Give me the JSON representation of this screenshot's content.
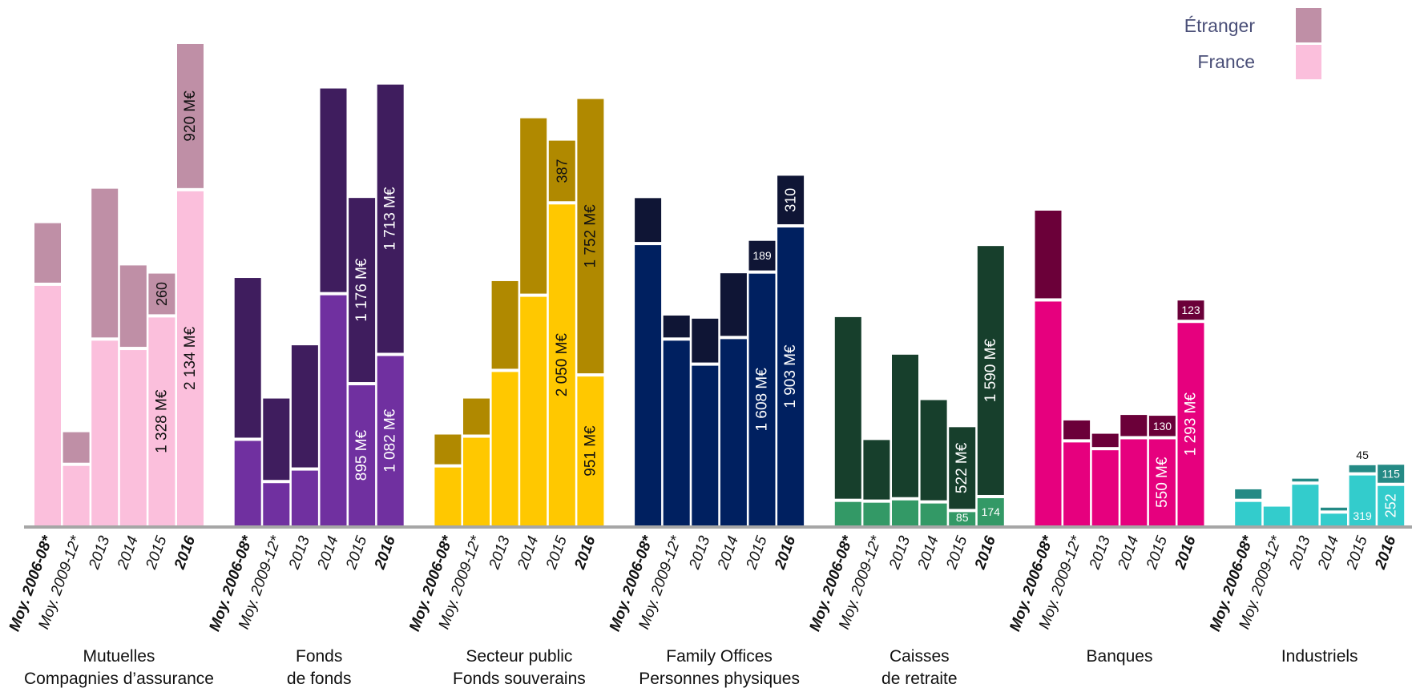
{
  "legend": [
    {
      "name": "Étranger",
      "key": "etranger"
    },
    {
      "name": "France",
      "key": "france"
    }
  ],
  "chart_data": {
    "type": "bar",
    "stacked": true,
    "ylim": [
      0,
      3100
    ],
    "grid": false,
    "legend_position": "top-right",
    "categories": [
      "Moy. 2006-08*",
      "Moy. 2009-12*",
      "2013",
      "2014",
      "2015",
      "2016"
    ],
    "bold_categories": [
      "Moy. 2006-08*",
      "2016"
    ],
    "series_names": [
      "France",
      "Étranger"
    ],
    "groups": [
      {
        "label_lines": [
          "Mutuelles",
          "Compagnies d’assurance"
        ],
        "france_color": "#fbbfdc",
        "etranger_color": "#bf8fa6",
        "text_light": false,
        "france": [
          1530,
          380,
          1180,
          1120,
          1328,
          2134
        ],
        "etranger": [
          380,
          195,
          950,
          520,
          260,
          920
        ],
        "france_labels": [
          "",
          "",
          "",
          "",
          "1 328 M€",
          "2 134 M€"
        ],
        "etranger_labels": [
          "",
          "",
          "",
          "",
          "260",
          "920 M€"
        ]
      },
      {
        "label_lines": [
          "Fonds",
          "de fonds"
        ],
        "france_color": "#7030a0",
        "etranger_color": "#3f1d5e",
        "text_light": true,
        "france": [
          540,
          270,
          350,
          1470,
          895,
          1082
        ],
        "etranger": [
          1020,
          520,
          780,
          1300,
          1176,
          1713
        ],
        "france_labels": [
          "",
          "",
          "",
          "",
          "895 M€",
          "1 082 M€"
        ],
        "etranger_labels": [
          "",
          "",
          "",
          "",
          "1 176 M€",
          "1 713 M€"
        ]
      },
      {
        "label_lines": [
          "Secteur public",
          "Fonds souverains"
        ],
        "france_color": "#ffc800",
        "etranger_color": "#b08900",
        "text_light": false,
        "france": [
          370,
          560,
          980,
          1460,
          2050,
          951
        ],
        "etranger": [
          190,
          230,
          560,
          1120,
          387,
          1752
        ],
        "france_labels": [
          "",
          "",
          "",
          "",
          "2 050 M€",
          "951 M€"
        ],
        "etranger_labels": [
          "",
          "",
          "",
          "",
          "387",
          "1 752 M€"
        ]
      },
      {
        "label_lines": [
          "Family Offices",
          "Personnes physiques"
        ],
        "france_color": "#002060",
        "etranger_color": "#0f1535",
        "text_light": true,
        "france": [
          1790,
          1180,
          1020,
          1190,
          1608,
          1903
        ],
        "etranger": [
          280,
          140,
          280,
          400,
          189,
          310
        ],
        "france_labels": [
          "",
          "",
          "",
          "",
          "1 608 M€",
          "1 903 M€"
        ],
        "etranger_labels": [
          "",
          "",
          "",
          "",
          "189",
          "310"
        ]
      },
      {
        "label_lines": [
          "Caisses",
          "de retraite"
        ],
        "france_color": "#339966",
        "etranger_color": "#173f2c",
        "text_light": true,
        "france": [
          150,
          145,
          160,
          140,
          85,
          174
        ],
        "etranger": [
          1160,
          380,
          910,
          640,
          522,
          1590
        ],
        "france_labels": [
          "",
          "",
          "",
          "",
          "85",
          "174"
        ],
        "etranger_labels": [
          "",
          "",
          "",
          "",
          "522 M€",
          "1 590 M€"
        ]
      },
      {
        "label_lines": [
          "Banques"
        ],
        "france_color": "#e6007e",
        "etranger_color": "#6b0039",
        "text_light": true,
        "france": [
          1430,
          530,
          480,
          550,
          550,
          1293
        ],
        "etranger": [
          560,
          120,
          85,
          135,
          130,
          123
        ],
        "france_labels": [
          "",
          "",
          "",
          "",
          "550 M€",
          "1 293 M€"
        ],
        "etranger_labels": [
          "",
          "",
          "",
          "",
          "130",
          "123"
        ]
      },
      {
        "label_lines": [
          "Industriels"
        ],
        "france_color": "#33cccc",
        "etranger_color": "#248a85",
        "text_light": true,
        "france": [
          150,
          120,
          260,
          75,
          319,
          252
        ],
        "etranger": [
          60,
          0,
          18,
          18,
          45,
          115
        ],
        "france_labels": [
          "",
          "",
          "",
          "",
          "319",
          "252"
        ],
        "etranger_labels": [
          "",
          "",
          "",
          "",
          "45",
          "115"
        ]
      }
    ]
  }
}
